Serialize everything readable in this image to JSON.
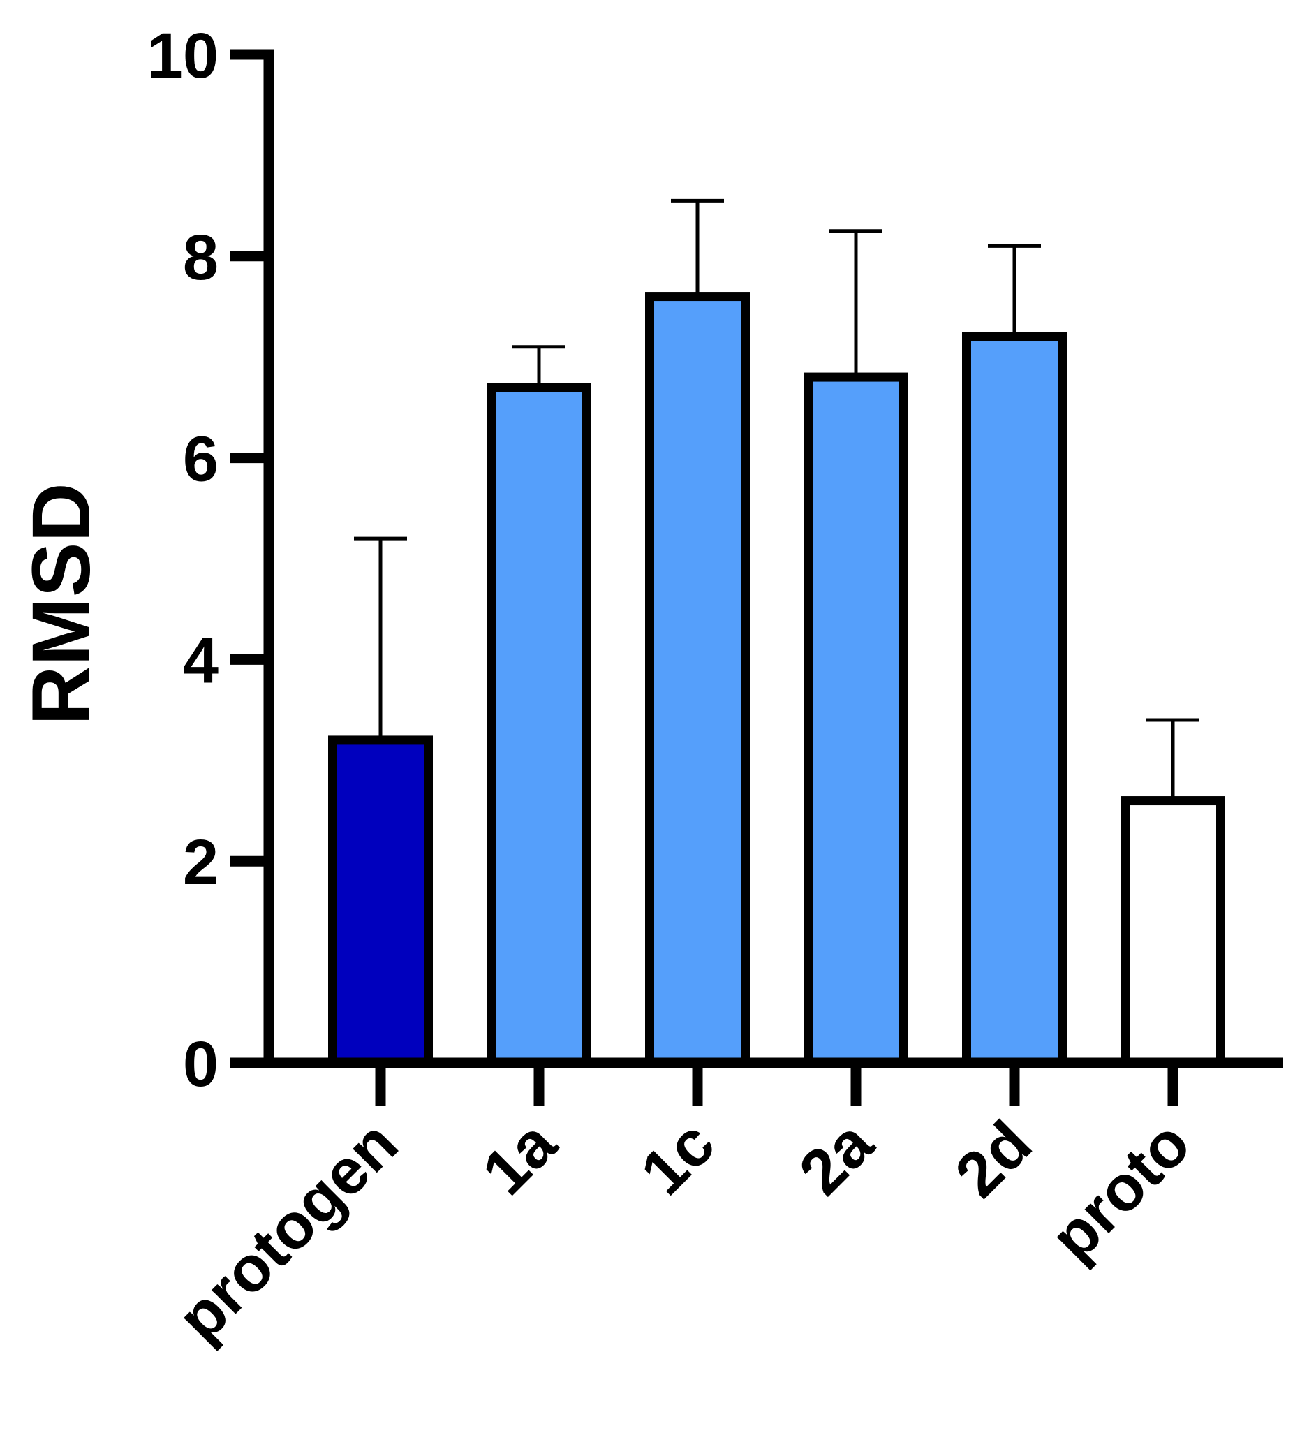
{
  "chart_data": {
    "type": "bar",
    "title": "",
    "xlabel": "",
    "ylabel": "RMSD",
    "ylim": [
      0,
      10
    ],
    "yticks": [
      0,
      2,
      4,
      6,
      8,
      10
    ],
    "grid": false,
    "legend": "none",
    "categories": [
      "protogen",
      "1a",
      "1c",
      "2a",
      "2d",
      "proto"
    ],
    "values": [
      3.2,
      6.7,
      7.6,
      6.8,
      7.2,
      2.6
    ],
    "errors": [
      2.0,
      0.4,
      0.95,
      1.45,
      0.9,
      0.8
    ],
    "bar_colors": [
      "#0000BE",
      "#559FFB",
      "#559FFB",
      "#559FFB",
      "#559FFB",
      "#FFFFFF"
    ],
    "outline_color": "#000000"
  }
}
